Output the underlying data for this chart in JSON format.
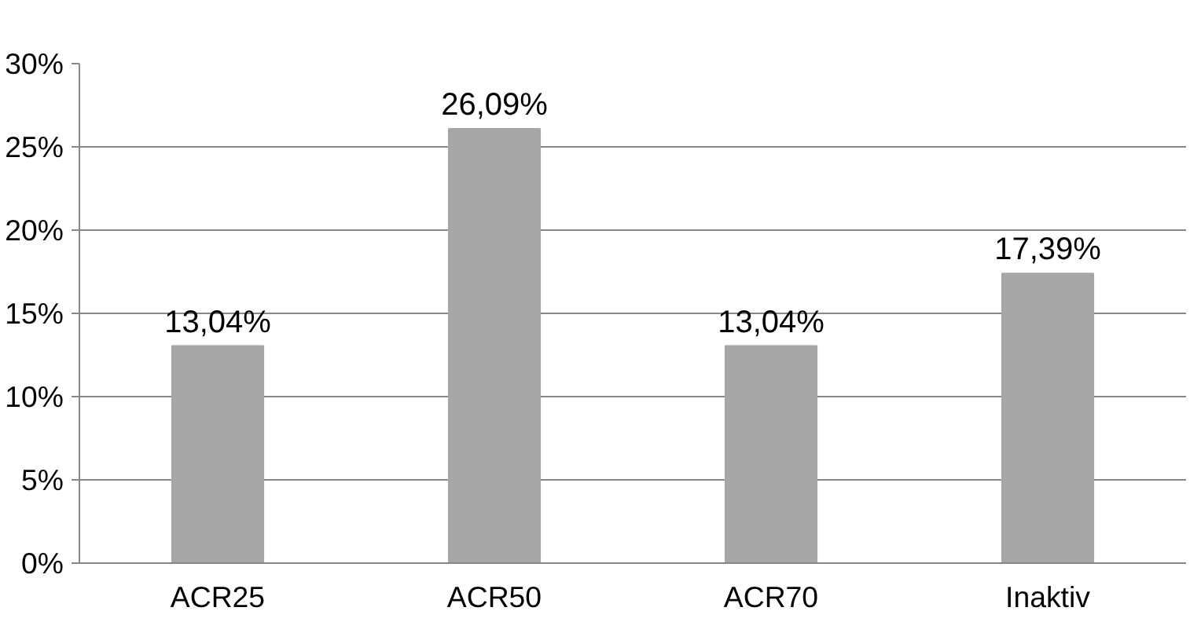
{
  "chart_data": {
    "type": "bar",
    "categories": [
      "ACR25",
      "ACR50",
      "ACR70",
      "Inaktiv"
    ],
    "values": [
      13.04,
      26.09,
      13.04,
      17.39
    ],
    "color": "#a6a6a6",
    "value_labels": [
      "13,04%",
      "26,09%",
      "13,04%",
      "17,39%"
    ],
    "ylim": [
      0,
      30
    ],
    "yticks": [
      {
        "value": 0,
        "label": "0%"
      },
      {
        "value": 5,
        "label": "5%"
      },
      {
        "value": 10,
        "label": "10%"
      },
      {
        "value": 15,
        "label": "15%"
      },
      {
        "value": 20,
        "label": "20%"
      },
      {
        "value": 25,
        "label": "25%"
      },
      {
        "value": 30,
        "label": "30%"
      }
    ],
    "grid": "y"
  }
}
